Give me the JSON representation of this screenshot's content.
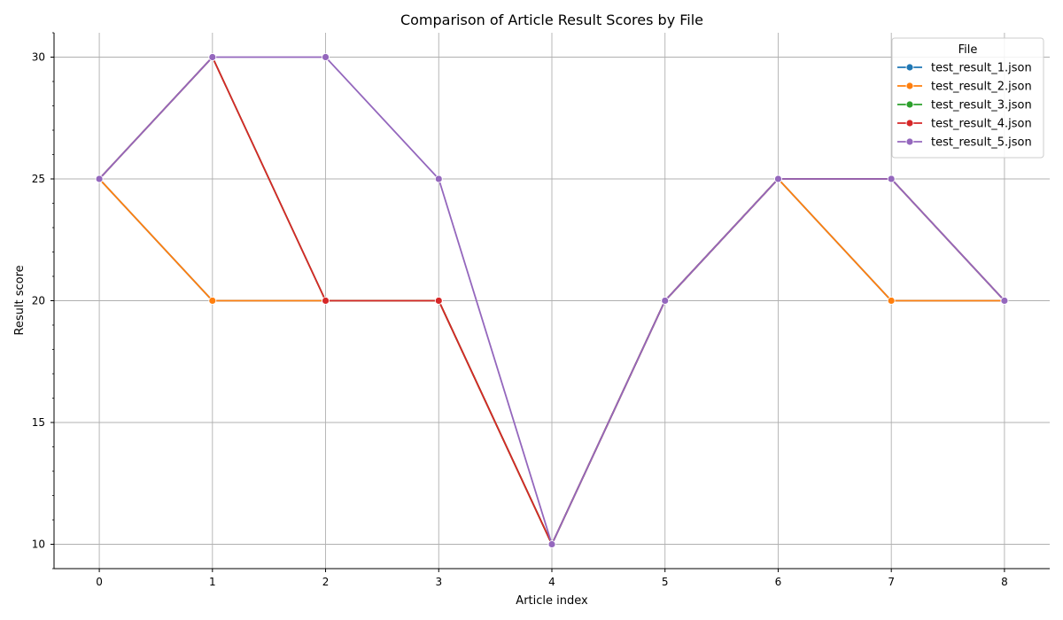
{
  "chart_data": {
    "type": "line",
    "title": "Comparison of Article Result Scores by File",
    "xlabel": "Article index",
    "ylabel": "Result score",
    "x": [
      0,
      1,
      2,
      3,
      4,
      5,
      6,
      7,
      8
    ],
    "xlim": [
      -0.4,
      8.4
    ],
    "ylim": [
      9,
      31
    ],
    "xticks": [
      0,
      1,
      2,
      3,
      4,
      5,
      6,
      7,
      8
    ],
    "yticks": [
      10,
      15,
      20,
      25,
      30
    ],
    "grid": true,
    "legend": {
      "title": "File",
      "placement": "top-right"
    },
    "series": [
      {
        "name": "test_result_1.json",
        "color": "#1f77b4",
        "values": [
          25,
          20,
          20,
          20,
          10,
          20,
          25,
          20,
          20
        ]
      },
      {
        "name": "test_result_2.json",
        "color": "#ff7f0e",
        "values": [
          25,
          20,
          20,
          20,
          10,
          20,
          25,
          20,
          20
        ]
      },
      {
        "name": "test_result_3.json",
        "color": "#2ca02c",
        "values": [
          25,
          30,
          20,
          20,
          10,
          20,
          25,
          25,
          20
        ]
      },
      {
        "name": "test_result_4.json",
        "color": "#d62728",
        "values": [
          25,
          30,
          20,
          20,
          10,
          20,
          25,
          25,
          20
        ]
      },
      {
        "name": "test_result_5.json",
        "color": "#9467bd",
        "values": [
          25,
          30,
          30,
          25,
          10,
          20,
          25,
          25,
          20
        ]
      }
    ]
  }
}
